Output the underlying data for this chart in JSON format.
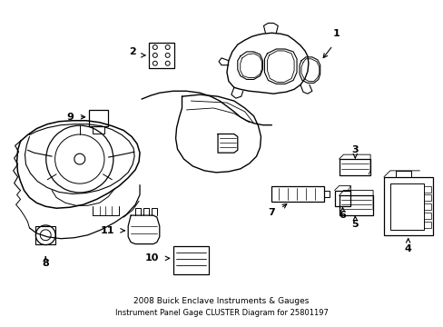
{
  "title": "2008 Buick Enclave Instruments & Gauges\nInstrument Panel Gage CLUSTER Diagram for 25801197",
  "bg_color": "#ffffff",
  "line_color": "#000000",
  "text_color": "#000000",
  "fig_width": 4.89,
  "fig_height": 3.6,
  "dpi": 100
}
